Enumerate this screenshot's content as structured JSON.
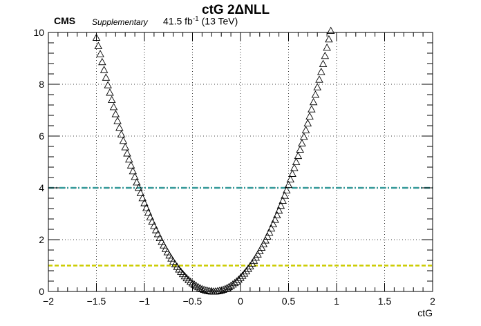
{
  "header": {
    "cms": "CMS",
    "supplementary": "Supplementary",
    "lumi_value": "41.5 fb",
    "lumi_exp": "-1",
    "energy": "(13 TeV)",
    "title": "ctG 2ΔNLL"
  },
  "chart_data": {
    "type": "scatter",
    "title": "ctG 2ΔNLL",
    "xlabel": "ctG",
    "ylabel": "",
    "xlim": [
      -2,
      2
    ],
    "ylim": [
      0,
      10
    ],
    "grid": true,
    "marker": "open-triangle",
    "xticks": [
      -2,
      -1.5,
      -1,
      -0.5,
      0,
      0.5,
      1,
      1.5,
      2
    ],
    "yticks": [
      0,
      2,
      4,
      6,
      8,
      10
    ],
    "xtick_labels": [
      "−2",
      "−1.5",
      "−1",
      "−0.5",
      "0",
      "0.5",
      "1",
      "1.5",
      "2"
    ],
    "ytick_labels": [
      "0",
      "2",
      "4",
      "6",
      "8",
      "10"
    ],
    "scan": {
      "min_x": -0.28,
      "x_start": -1.5,
      "x_end": 0.93,
      "step": 0.02,
      "y_at_x_start": 9.8,
      "y_at_x_end": 9.9
    },
    "reference_lines": [
      {
        "y": 1,
        "color": "#cccc00",
        "style": "dashed"
      },
      {
        "y": 4,
        "color": "#339999",
        "style": "dash-dot"
      }
    ]
  }
}
